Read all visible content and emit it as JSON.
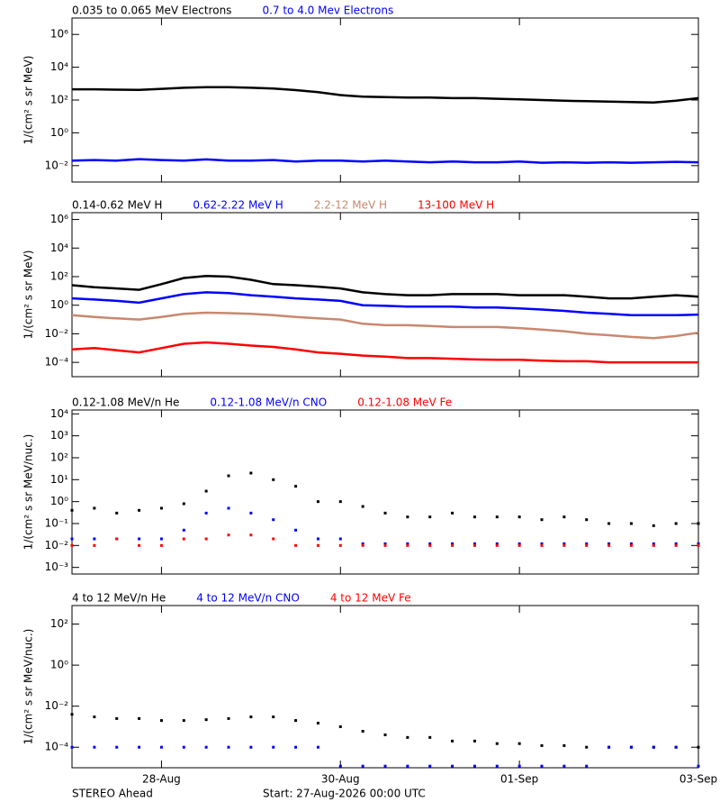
{
  "chart_data": [
    {
      "type": "line",
      "ylabel": "1/(cm² s sr MeV)",
      "log_y": true,
      "ylim": [
        0.001,
        10000000
      ],
      "yticks": [
        {
          "value": 0.01,
          "label": "10⁻²"
        },
        {
          "value": 1,
          "label": "10⁰"
        },
        {
          "value": 100,
          "label": "10²"
        },
        {
          "value": 10000,
          "label": "10⁴"
        },
        {
          "value": 1000000,
          "label": "10⁶"
        }
      ],
      "xlim": [
        "2026-08-27T00:00",
        "2026-09-03T00:00"
      ],
      "x": [
        "2026-08-27T00:00",
        "2026-08-27T06:00",
        "2026-08-27T12:00",
        "2026-08-27T18:00",
        "2026-08-28T00:00",
        "2026-08-28T06:00",
        "2026-08-28T12:00",
        "2026-08-28T18:00",
        "2026-08-29T00:00",
        "2026-08-29T06:00",
        "2026-08-29T12:00",
        "2026-08-29T18:00",
        "2026-08-30T00:00",
        "2026-08-30T06:00",
        "2026-08-30T12:00",
        "2026-08-30T18:00",
        "2026-08-31T00:00",
        "2026-08-31T06:00",
        "2026-08-31T12:00",
        "2026-08-31T18:00",
        "2026-09-01T00:00",
        "2026-09-01T06:00",
        "2026-09-01T12:00",
        "2026-09-01T18:00",
        "2026-09-02T00:00",
        "2026-09-02T06:00",
        "2026-09-02T12:00",
        "2026-09-02T18:00",
        "2026-09-03T00:00"
      ],
      "series": [
        {
          "name": "0.035 to 0.065 MeV Electrons",
          "color": "#000000",
          "values": [
            450,
            450,
            430,
            420,
            480,
            560,
            600,
            600,
            560,
            500,
            400,
            300,
            200,
            160,
            150,
            140,
            140,
            130,
            130,
            120,
            110,
            100,
            90,
            85,
            80,
            75,
            70,
            90,
            130
          ]
        },
        {
          "name": "0.7 to 4.0 Mev Electrons",
          "color": "#0000ff",
          "values": [
            0.02,
            0.022,
            0.02,
            0.025,
            0.022,
            0.02,
            0.024,
            0.02,
            0.02,
            0.022,
            0.018,
            0.02,
            0.02,
            0.018,
            0.02,
            0.018,
            0.016,
            0.018,
            0.016,
            0.016,
            0.018,
            0.015,
            0.016,
            0.015,
            0.016,
            0.015,
            0.016,
            0.017,
            0.016
          ]
        }
      ]
    },
    {
      "type": "line",
      "ylabel": "1/(cm² s sr MeV)",
      "log_y": true,
      "ylim": [
        1e-05,
        3000000
      ],
      "yticks": [
        {
          "value": 0.0001,
          "label": "10⁻⁴"
        },
        {
          "value": 0.01,
          "label": "10⁻²"
        },
        {
          "value": 1,
          "label": "10⁰"
        },
        {
          "value": 100,
          "label": "10²"
        },
        {
          "value": 10000,
          "label": "10⁴"
        },
        {
          "value": 1000000,
          "label": "10⁶"
        }
      ],
      "xlim": [
        "2026-08-27T00:00",
        "2026-09-03T00:00"
      ],
      "x": [
        "2026-08-27T00:00",
        "2026-08-27T06:00",
        "2026-08-27T12:00",
        "2026-08-27T18:00",
        "2026-08-28T00:00",
        "2026-08-28T06:00",
        "2026-08-28T12:00",
        "2026-08-28T18:00",
        "2026-08-29T00:00",
        "2026-08-29T06:00",
        "2026-08-29T12:00",
        "2026-08-29T18:00",
        "2026-08-30T00:00",
        "2026-08-30T06:00",
        "2026-08-30T12:00",
        "2026-08-30T18:00",
        "2026-08-31T00:00",
        "2026-08-31T06:00",
        "2026-08-31T12:00",
        "2026-08-31T18:00",
        "2026-09-01T00:00",
        "2026-09-01T06:00",
        "2026-09-01T12:00",
        "2026-09-01T18:00",
        "2026-09-02T00:00",
        "2026-09-02T06:00",
        "2026-09-02T12:00",
        "2026-09-02T18:00",
        "2026-09-03T00:00"
      ],
      "series": [
        {
          "name": "0.14-0.62 MeV H",
          "color": "#000000",
          "values": [
            25,
            18,
            15,
            12,
            30,
            80,
            110,
            100,
            60,
            30,
            25,
            20,
            15,
            8,
            6,
            5,
            5,
            6,
            6,
            6,
            5,
            5,
            5,
            4,
            3,
            3,
            4,
            5,
            4
          ]
        },
        {
          "name": "0.62-2.22 MeV H",
          "color": "#0000ff",
          "values": [
            3,
            2.5,
            2,
            1.5,
            3,
            6,
            8,
            7,
            5,
            4,
            3,
            2.5,
            2,
            1,
            0.9,
            0.8,
            0.8,
            0.8,
            0.7,
            0.7,
            0.6,
            0.5,
            0.4,
            0.3,
            0.25,
            0.2,
            0.2,
            0.2,
            0.22
          ]
        },
        {
          "name": "2.2-12 MeV H",
          "color": "#c88870",
          "values": [
            0.2,
            0.15,
            0.12,
            0.1,
            0.15,
            0.25,
            0.3,
            0.28,
            0.25,
            0.2,
            0.15,
            0.12,
            0.1,
            0.05,
            0.04,
            0.04,
            0.035,
            0.03,
            0.03,
            0.03,
            0.025,
            0.02,
            0.015,
            0.01,
            0.008,
            0.006,
            0.005,
            0.007,
            0.012
          ]
        },
        {
          "name": "13-100 MeV H",
          "color": "#ff0000",
          "values": [
            0.0008,
            0.001,
            0.0007,
            0.0005,
            0.001,
            0.002,
            0.0025,
            0.002,
            0.0015,
            0.0012,
            0.0008,
            0.0005,
            0.0004,
            0.0003,
            0.00025,
            0.0002,
            0.0002,
            0.00018,
            0.00016,
            0.00015,
            0.00015,
            0.00013,
            0.00012,
            0.00012,
            0.0001,
            0.0001,
            0.0001,
            0.0001,
            0.0001
          ]
        }
      ]
    },
    {
      "type": "scatter",
      "ylabel": "1/(cm² s sr MeV/nuc.)",
      "log_y": true,
      "ylim": [
        0.0005,
        15000
      ],
      "yticks": [
        {
          "value": 0.001,
          "label": "10⁻³"
        },
        {
          "value": 0.01,
          "label": "10⁻²"
        },
        {
          "value": 0.1,
          "label": "10⁻¹"
        },
        {
          "value": 1,
          "label": "10⁰"
        },
        {
          "value": 10,
          "label": "10¹"
        },
        {
          "value": 100,
          "label": "10²"
        },
        {
          "value": 1000,
          "label": "10³"
        },
        {
          "value": 10000,
          "label": "10⁴"
        }
      ],
      "xlim": [
        "2026-08-27T00:00",
        "2026-09-03T00:00"
      ],
      "x": [
        "2026-08-27T00:00",
        "2026-08-27T06:00",
        "2026-08-27T12:00",
        "2026-08-27T18:00",
        "2026-08-28T00:00",
        "2026-08-28T06:00",
        "2026-08-28T12:00",
        "2026-08-28T18:00",
        "2026-08-29T00:00",
        "2026-08-29T06:00",
        "2026-08-29T12:00",
        "2026-08-29T18:00",
        "2026-08-30T00:00",
        "2026-08-30T06:00",
        "2026-08-30T12:00",
        "2026-08-30T18:00",
        "2026-08-31T00:00",
        "2026-08-31T06:00",
        "2026-08-31T12:00",
        "2026-08-31T18:00",
        "2026-09-01T00:00",
        "2026-09-01T06:00",
        "2026-09-01T12:00",
        "2026-09-01T18:00",
        "2026-09-02T00:00",
        "2026-09-02T06:00",
        "2026-09-02T12:00",
        "2026-09-02T18:00",
        "2026-09-03T00:00"
      ],
      "series": [
        {
          "name": "0.12-1.08 MeV/n He",
          "color": "#000000",
          "values": [
            0.4,
            0.5,
            0.3,
            0.4,
            0.5,
            0.8,
            3,
            15,
            20,
            10,
            5,
            1,
            1,
            0.6,
            0.3,
            0.2,
            0.2,
            0.3,
            0.2,
            0.2,
            0.2,
            0.15,
            0.2,
            0.15,
            0.1,
            0.1,
            0.08,
            0.1,
            0.1
          ]
        },
        {
          "name": "0.12-1.08 MeV/n CNO",
          "color": "#0000ff",
          "values": [
            0.02,
            0.02,
            0.02,
            0.02,
            0.02,
            0.05,
            0.3,
            0.5,
            0.3,
            0.15,
            0.05,
            0.02,
            0.02,
            0.012,
            0.012,
            0.012,
            0.012,
            0.012,
            0.012,
            0.012,
            0.012,
            0.012,
            0.012,
            0.012,
            0.012,
            0.012,
            0.012,
            0.012,
            0.012
          ]
        },
        {
          "name": "0.12-1.08 MeV Fe",
          "color": "#ff0000",
          "values": [
            0.01,
            0.01,
            0.02,
            0.01,
            0.01,
            0.02,
            0.02,
            0.03,
            0.03,
            0.02,
            0.01,
            0.01,
            0.01,
            0.01,
            0.01,
            0.01,
            0.01,
            0.01,
            0.01,
            0.01,
            0.01,
            0.01,
            0.01,
            0.01,
            0.01,
            0.01,
            0.01,
            0.01,
            0.01
          ]
        }
      ]
    },
    {
      "type": "scatter",
      "ylabel": "1/(cm² s sr MeV/nuc.)",
      "log_y": true,
      "ylim": [
        1e-05,
        800
      ],
      "yticks": [
        {
          "value": 0.0001,
          "label": "10⁻⁴"
        },
        {
          "value": 0.01,
          "label": "10⁻²"
        },
        {
          "value": 1,
          "label": "10⁰"
        },
        {
          "value": 100,
          "label": "10²"
        }
      ],
      "xlim": [
        "2026-08-27T00:00",
        "2026-09-03T00:00"
      ],
      "xticks": [
        {
          "value": "2026-08-28T00:00",
          "label": "28-Aug"
        },
        {
          "value": "2026-08-30T00:00",
          "label": "30-Aug"
        },
        {
          "value": "2026-09-01T00:00",
          "label": "01-Sep"
        },
        {
          "value": "2026-09-03T00:00",
          "label": "03-Sep"
        }
      ],
      "x": [
        "2026-08-27T00:00",
        "2026-08-27T06:00",
        "2026-08-27T12:00",
        "2026-08-27T18:00",
        "2026-08-28T00:00",
        "2026-08-28T06:00",
        "2026-08-28T12:00",
        "2026-08-28T18:00",
        "2026-08-29T00:00",
        "2026-08-29T06:00",
        "2026-08-29T12:00",
        "2026-08-29T18:00",
        "2026-08-30T00:00",
        "2026-08-30T06:00",
        "2026-08-30T12:00",
        "2026-08-30T18:00",
        "2026-08-31T00:00",
        "2026-08-31T06:00",
        "2026-08-31T12:00",
        "2026-08-31T18:00",
        "2026-09-01T00:00",
        "2026-09-01T06:00",
        "2026-09-01T12:00",
        "2026-09-01T18:00",
        "2026-09-02T00:00",
        "2026-09-02T06:00",
        "2026-09-02T12:00",
        "2026-09-02T18:00",
        "2026-09-03T00:00"
      ],
      "series": [
        {
          "name": "4 to 12 MeV/n He",
          "color": "#000000",
          "values": [
            0.004,
            0.003,
            0.0025,
            0.0025,
            0.002,
            0.002,
            0.0022,
            0.0025,
            0.003,
            0.003,
            0.002,
            0.0015,
            0.001,
            0.0006,
            0.0004,
            0.0003,
            0.0003,
            0.0002,
            0.0002,
            0.00015,
            0.00015,
            0.00012,
            0.00012,
            0.0001,
            0.0001,
            0.0001,
            0.0001,
            0.0001,
            0.0001
          ]
        },
        {
          "name": "4 to 12 MeV/n CNO",
          "color": "#0000ff",
          "values": [
            0.0001,
            0.0001,
            0.0001,
            0.0001,
            0.0001,
            0.0001,
            0.0001,
            0.0001,
            0.0001,
            0.0001,
            0.0001,
            0.0001,
            1.2e-05,
            1.2e-05,
            1.2e-05,
            1.2e-05,
            1.2e-05,
            1.2e-05,
            1.2e-05,
            1.2e-05,
            1.2e-05,
            1.2e-05,
            1.2e-05,
            1.2e-05,
            0.0001,
            0.0001,
            0.0001,
            0.0001,
            1.2e-05
          ]
        },
        {
          "name": "4 to 12 MeV Fe",
          "color": "#ff0000",
          "values": [
            null,
            null,
            null,
            null,
            null,
            null,
            null,
            null,
            null,
            null,
            null,
            null,
            null,
            null,
            null,
            null,
            null,
            null,
            null,
            null,
            null,
            null,
            null,
            null,
            null,
            null,
            null,
            null,
            null
          ]
        }
      ]
    }
  ],
  "footer": {
    "left": "STEREO Ahead",
    "center": "Start: 27-Aug-2026 00:00 UTC"
  }
}
